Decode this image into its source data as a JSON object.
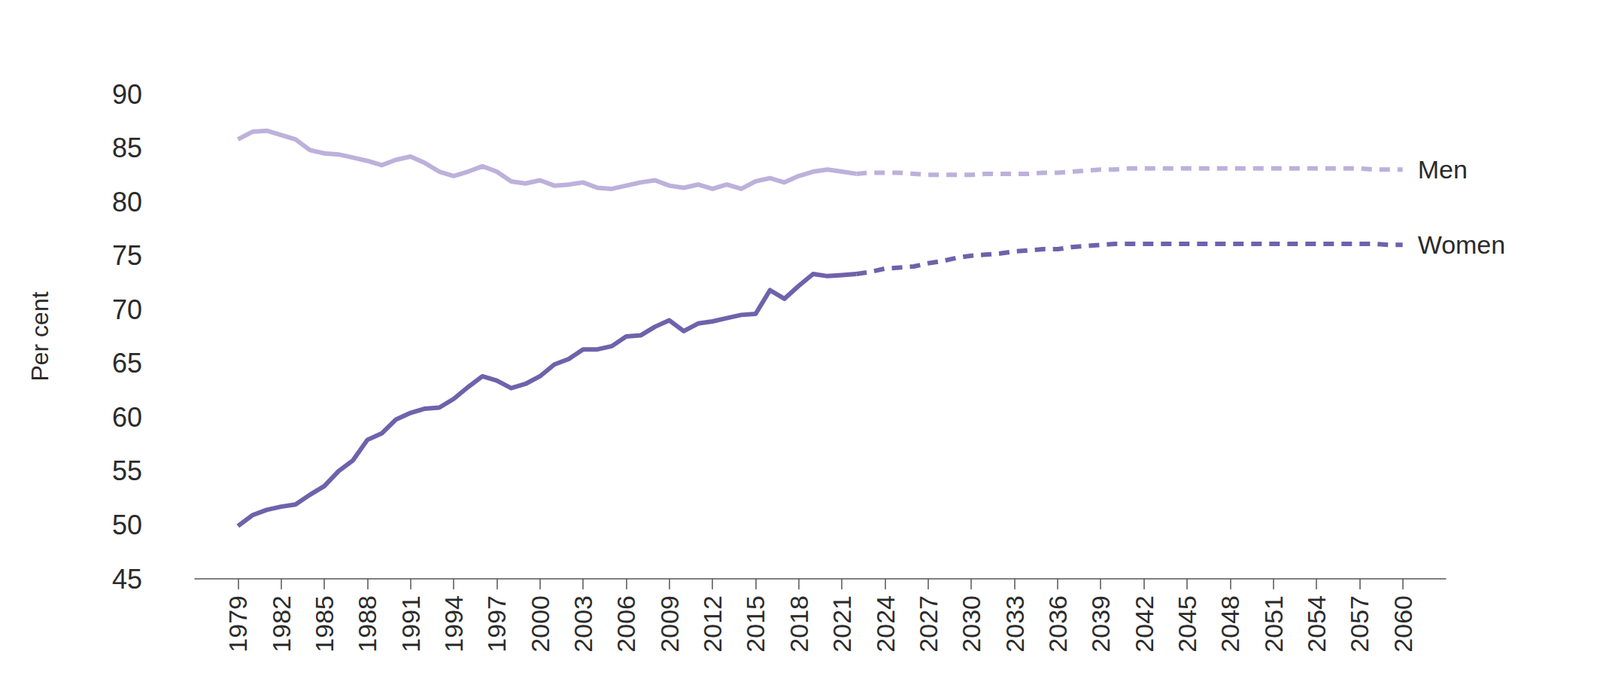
{
  "chart_data": {
    "type": "line",
    "ylabel": "Per cent",
    "x": [
      1979,
      1980,
      1981,
      1982,
      1983,
      1984,
      1985,
      1986,
      1987,
      1988,
      1989,
      1990,
      1991,
      1992,
      1993,
      1994,
      1995,
      1996,
      1997,
      1998,
      1999,
      2000,
      2001,
      2002,
      2003,
      2004,
      2005,
      2006,
      2007,
      2008,
      2009,
      2010,
      2011,
      2012,
      2013,
      2014,
      2015,
      2016,
      2017,
      2018,
      2019,
      2020,
      2021,
      2022,
      2023,
      2024,
      2025,
      2026,
      2027,
      2028,
      2029,
      2030,
      2031,
      2032,
      2033,
      2034,
      2035,
      2036,
      2037,
      2038,
      2039,
      2040,
      2041,
      2042,
      2043,
      2044,
      2045,
      2046,
      2047,
      2048,
      2049,
      2050,
      2051,
      2052,
      2053,
      2054,
      2055,
      2056,
      2057,
      2058,
      2059,
      2060
    ],
    "series": [
      {
        "name": "Men",
        "color": "#bdb1db",
        "line_style": "solid",
        "values": [
          85.8,
          86.5,
          86.6,
          86.2,
          85.8,
          84.8,
          84.5,
          84.4,
          84.1,
          83.8,
          83.4,
          83.9,
          84.2,
          83.6,
          82.8,
          82.4,
          82.8,
          83.3,
          82.8,
          81.9,
          81.7,
          82.0,
          81.5,
          81.6,
          81.8,
          81.3,
          81.2,
          81.5,
          81.8,
          82.0,
          81.5,
          81.3,
          81.6,
          81.2,
          81.6,
          81.2,
          81.9,
          82.2,
          81.8,
          82.4,
          82.8,
          83.0,
          82.8,
          82.6,
          null,
          null,
          null,
          null,
          null,
          null,
          null,
          null,
          null,
          null,
          null,
          null,
          null,
          null,
          null,
          null,
          null,
          null,
          null,
          null,
          null,
          null,
          null,
          null,
          null,
          null,
          null,
          null,
          null,
          null,
          null,
          null,
          null,
          null,
          null,
          null,
          null,
          null
        ]
      },
      {
        "name": "Men",
        "color": "#bdb1db",
        "line_style": "dashed",
        "values": [
          null,
          null,
          null,
          null,
          null,
          null,
          null,
          null,
          null,
          null,
          null,
          null,
          null,
          null,
          null,
          null,
          null,
          null,
          null,
          null,
          null,
          null,
          null,
          null,
          null,
          null,
          null,
          null,
          null,
          null,
          null,
          null,
          null,
          null,
          null,
          null,
          null,
          null,
          null,
          null,
          null,
          null,
          null,
          82.6,
          82.7,
          82.7,
          82.7,
          82.6,
          82.5,
          82.5,
          82.5,
          82.5,
          82.6,
          82.6,
          82.6,
          82.6,
          82.7,
          82.7,
          82.8,
          82.9,
          83.0,
          83.0,
          83.1,
          83.1,
          83.1,
          83.1,
          83.1,
          83.1,
          83.1,
          83.1,
          83.1,
          83.1,
          83.1,
          83.1,
          83.1,
          83.1,
          83.1,
          83.1,
          83.1,
          83.0,
          83.0,
          83.0
        ]
      },
      {
        "name": "Women",
        "color": "#6f62ab",
        "line_style": "solid",
        "values": [
          49.9,
          50.9,
          51.4,
          51.7,
          51.9,
          52.8,
          53.6,
          55.0,
          56.0,
          57.9,
          58.5,
          59.8,
          60.4,
          60.8,
          60.9,
          61.7,
          62.8,
          63.8,
          63.4,
          62.7,
          63.1,
          63.8,
          64.9,
          65.4,
          66.3,
          66.3,
          66.6,
          67.5,
          67.6,
          68.4,
          69.0,
          68.0,
          68.7,
          68.9,
          69.2,
          69.5,
          69.6,
          71.8,
          71.0,
          72.2,
          73.3,
          73.1,
          73.2,
          73.3,
          null,
          null,
          null,
          null,
          null,
          null,
          null,
          null,
          null,
          null,
          null,
          null,
          null,
          null,
          null,
          null,
          null,
          null,
          null,
          null,
          null,
          null,
          null,
          null,
          null,
          null,
          null,
          null,
          null,
          null,
          null,
          null,
          null,
          null,
          null,
          null,
          null,
          null
        ]
      },
      {
        "name": "Women",
        "color": "#6f62ab",
        "line_style": "dashed",
        "values": [
          null,
          null,
          null,
          null,
          null,
          null,
          null,
          null,
          null,
          null,
          null,
          null,
          null,
          null,
          null,
          null,
          null,
          null,
          null,
          null,
          null,
          null,
          null,
          null,
          null,
          null,
          null,
          null,
          null,
          null,
          null,
          null,
          null,
          null,
          null,
          null,
          null,
          null,
          null,
          null,
          null,
          null,
          null,
          73.3,
          73.5,
          73.8,
          73.9,
          74.0,
          74.3,
          74.5,
          74.8,
          75.0,
          75.1,
          75.2,
          75.4,
          75.5,
          75.6,
          75.6,
          75.8,
          75.9,
          76.0,
          76.1,
          76.1,
          76.1,
          76.1,
          76.1,
          76.1,
          76.1,
          76.1,
          76.1,
          76.1,
          76.1,
          76.1,
          76.1,
          76.1,
          76.1,
          76.1,
          76.1,
          76.1,
          76.1,
          76.0,
          76.0
        ]
      }
    ],
    "xlim": [
      1976,
      2063
    ],
    "xticks": [
      1979,
      1982,
      1985,
      1988,
      1991,
      1994,
      1997,
      2000,
      2003,
      2006,
      2009,
      2012,
      2015,
      2018,
      2021,
      2024,
      2027,
      2030,
      2033,
      2036,
      2039,
      2042,
      2045,
      2048,
      2051,
      2054,
      2057,
      2060
    ],
    "ylim": [
      45,
      90
    ],
    "yticks": [
      45,
      50,
      55,
      60,
      65,
      70,
      75,
      80,
      85,
      90
    ],
    "grid": false
  }
}
